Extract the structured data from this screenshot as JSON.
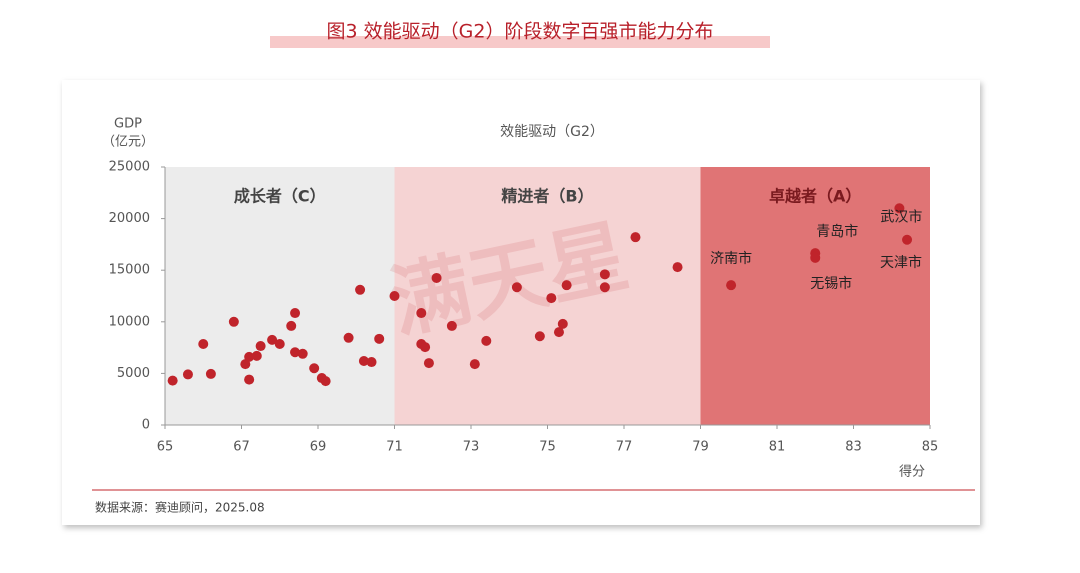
{
  "chart_data": {
    "type": "scatter",
    "title": "图3 效能驱动（G2）阶段数字百强市能力分布",
    "subtitle": "效能驱动（G2）",
    "ylabel": [
      "GDP",
      "（亿元）"
    ],
    "xlabel": "得分",
    "source": "数据来源：赛迪顾问，2025.08",
    "watermark": "满天星",
    "color": "#c0242b",
    "xlim": [
      65,
      85
    ],
    "xticks": [
      65,
      67,
      69,
      71,
      73,
      75,
      77,
      79,
      81,
      83,
      85
    ],
    "ylim": [
      0,
      25000
    ],
    "yticks": [
      0,
      5000,
      10000,
      15000,
      20000,
      25000
    ],
    "regions": [
      {
        "label": "成长者（C）",
        "from": 65,
        "to": 71,
        "color": "#ececec"
      },
      {
        "label": "精进者（B）",
        "from": 71,
        "to": 79,
        "color": "#f5d3d3"
      },
      {
        "label": "卓越者（A）",
        "from": 79,
        "to": 85,
        "color": "#e07475"
      }
    ],
    "x": [
      65.2,
      65.6,
      66.0,
      66.2,
      66.8,
      67.1,
      67.2,
      67.2,
      67.4,
      67.5,
      67.8,
      68.0,
      68.3,
      68.4,
      68.4,
      68.6,
      68.9,
      69.1,
      69.2,
      69.8,
      70.1,
      70.2,
      70.4,
      70.6,
      71.0,
      71.7,
      71.7,
      71.8,
      71.9,
      72.1,
      72.5,
      73.1,
      73.4,
      74.2,
      74.8,
      75.1,
      75.3,
      75.4,
      75.5,
      76.5,
      76.5,
      77.3,
      78.4,
      79.8,
      82.0,
      82.0,
      84.2,
      84.4
    ],
    "values": [
      4300,
      4900,
      7850,
      4950,
      10000,
      5900,
      6600,
      4400,
      6700,
      7650,
      8250,
      7850,
      9600,
      10850,
      7050,
      6900,
      5500,
      4550,
      4250,
      8450,
      13100,
      6200,
      6100,
      8350,
      12500,
      10850,
      7850,
      7550,
      6000,
      14250,
      9600,
      5900,
      8150,
      13350,
      8600,
      12300,
      9000,
      9800,
      13550,
      14600,
      13350,
      18200,
      15300,
      13550,
      16650,
      16200,
      21000,
      17950
    ],
    "point_labels": [
      null,
      null,
      null,
      null,
      null,
      null,
      null,
      null,
      null,
      null,
      null,
      null,
      null,
      null,
      null,
      null,
      null,
      null,
      null,
      null,
      null,
      null,
      null,
      null,
      null,
      null,
      null,
      null,
      null,
      null,
      null,
      null,
      null,
      null,
      null,
      null,
      null,
      null,
      null,
      null,
      null,
      null,
      null,
      "济南市",
      "青岛市",
      "无锡市",
      "武汉市",
      "天津市"
    ]
  }
}
